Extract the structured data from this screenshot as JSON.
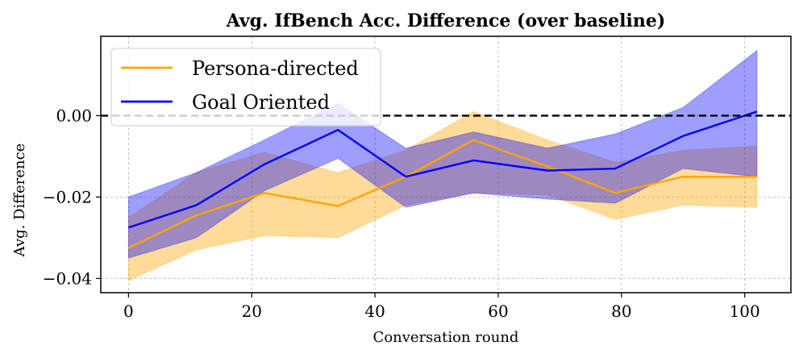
{
  "chart_data": {
    "type": "line",
    "title": "Avg. IfBench Acc. Difference (over baseline)",
    "xlabel": "Conversation round",
    "ylabel": "Avg. Difference",
    "xlim": [
      -4.5,
      107.5
    ],
    "ylim": [
      -0.0435,
      0.0195
    ],
    "x_ticks": [
      0,
      20,
      40,
      60,
      80,
      100
    ],
    "x_tick_labels": [
      "0",
      "20",
      "40",
      "60",
      "80",
      "100"
    ],
    "y_ticks": [
      0.0,
      -0.02,
      -0.04
    ],
    "y_tick_labels": [
      "0.00",
      "−0.02",
      "−0.04"
    ],
    "grid": true,
    "legend_position": "upper-left",
    "reference_line": {
      "y": 0.0,
      "style": "dashed",
      "color": "#000000"
    },
    "series": [
      {
        "name": "Persona-directed",
        "color": "#FFA500",
        "x": [
          0,
          11,
          22,
          34,
          45,
          56,
          68,
          79,
          90,
          102
        ],
        "values": [
          -0.0325,
          -0.0245,
          -0.019,
          -0.0222,
          -0.015,
          -0.006,
          -0.0125,
          -0.019,
          -0.015,
          -0.015
        ],
        "upper_2": [
          -0.025,
          -0.014,
          -0.009,
          -0.014,
          -0.0085,
          0.001,
          -0.006,
          -0.0115,
          -0.0085,
          -0.0075
        ],
        "lower_2": [
          -0.0405,
          -0.033,
          -0.0295,
          -0.03,
          -0.022,
          -0.019,
          -0.0195,
          -0.0255,
          -0.022,
          -0.0225
        ]
      },
      {
        "name": "Goal Oriented",
        "color": "#0000FF",
        "x": [
          0,
          11,
          22,
          34,
          45,
          56,
          68,
          79,
          90,
          102
        ],
        "values": [
          -0.0275,
          -0.022,
          -0.012,
          -0.0035,
          -0.015,
          -0.011,
          -0.0135,
          -0.013,
          -0.005,
          0.001
        ],
        "upper_2": [
          -0.02,
          -0.014,
          -0.006,
          0.003,
          -0.008,
          -0.004,
          -0.008,
          -0.0045,
          0.002,
          0.016
        ],
        "lower_2": [
          -0.035,
          -0.03,
          -0.0185,
          -0.0105,
          -0.0225,
          -0.019,
          -0.0205,
          -0.0215,
          -0.013,
          -0.015
        ]
      }
    ]
  }
}
